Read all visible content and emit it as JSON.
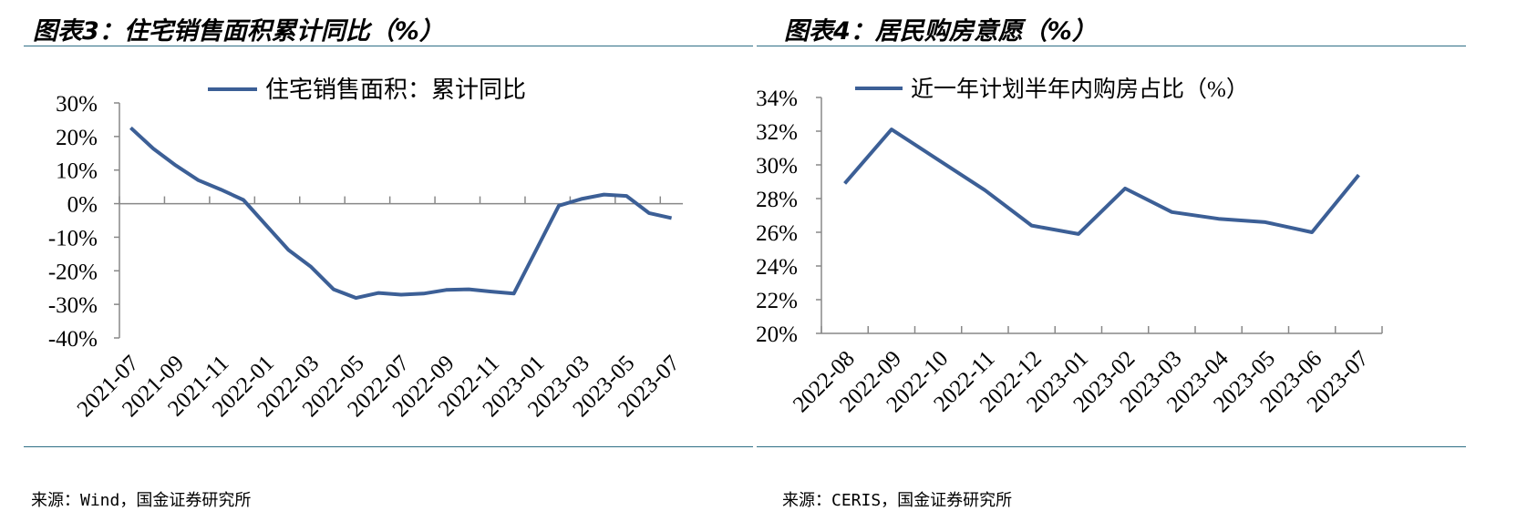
{
  "left": {
    "title": "图表3：住宅销售面积累计同比（%）",
    "source": "来源：Wind，国金证券研究所"
  },
  "right": {
    "title": "图表4：居民购房意愿（%）",
    "source": "来源：CERIS，国金证券研究所"
  },
  "colors": {
    "line": "#3c5f96",
    "rule": "#2f6f86"
  },
  "chart_data": [
    {
      "type": "line",
      "title": "",
      "legend_position": "top-center",
      "grid": false,
      "ylim": [
        -40,
        30
      ],
      "yticks": [
        "30%",
        "20%",
        "10%",
        "0%",
        "-10%",
        "-20%",
        "-30%",
        "-40%"
      ],
      "xtick_labels": [
        "2021-07",
        "2021-09",
        "2021-11",
        "2022-01",
        "2022-03",
        "2022-05",
        "2022-07",
        "2022-09",
        "2022-11",
        "2023-01",
        "2023-03",
        "2023-05",
        "2023-07"
      ],
      "x": [
        "2021-07",
        "2021-08",
        "2021-09",
        "2021-10",
        "2021-11",
        "2021-12",
        "2022-01",
        "2022-02",
        "2022-03",
        "2022-04",
        "2022-05",
        "2022-06",
        "2022-07",
        "2022-08",
        "2022-09",
        "2022-10",
        "2022-11",
        "2022-12",
        "2023-01",
        "2023-02",
        "2023-03",
        "2023-04",
        "2023-05",
        "2023-06",
        "2023-07"
      ],
      "series": [
        {
          "name": "住宅销售面积：累计同比",
          "values": [
            22.6,
            16.4,
            11.4,
            7.0,
            4.2,
            1.1,
            null,
            -13.8,
            -18.8,
            -25.5,
            -28.1,
            -26.6,
            -27.1,
            -26.8,
            -25.7,
            -25.5,
            -26.2,
            -26.8,
            null,
            -0.6,
            1.4,
            2.7,
            2.3,
            -2.8,
            -4.3
          ]
        }
      ]
    },
    {
      "type": "line",
      "title": "",
      "legend_position": "top-center",
      "grid": false,
      "ylim": [
        20,
        34
      ],
      "yticks": [
        "34%",
        "32%",
        "30%",
        "28%",
        "26%",
        "24%",
        "22%",
        "20%"
      ],
      "x": [
        "2022-08",
        "2022-09",
        "2022-10",
        "2022-11",
        "2022-12",
        "2023-01",
        "2023-02",
        "2023-03",
        "2023-04",
        "2023-05",
        "2023-06",
        "2023-07"
      ],
      "series": [
        {
          "name": "近一年计划半年内购房占比（%）",
          "values": [
            28.9,
            32.1,
            30.3,
            28.5,
            26.4,
            25.9,
            28.6,
            27.2,
            26.8,
            26.6,
            26.0,
            29.4
          ]
        }
      ]
    }
  ]
}
